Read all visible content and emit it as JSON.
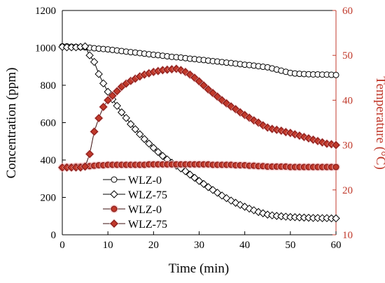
{
  "colors": {
    "axis_left": "#000000",
    "axis_right": "#c0392b",
    "black_marker_stroke": "#000000",
    "black_marker_fill": "#ffffff",
    "red_line": "#3a0d0d",
    "red_marker_fill": "#c0392b",
    "red_marker_stroke": "#7a1010",
    "red_marker_glow": "#f2b8b8"
  },
  "chart_data": {
    "type": "line",
    "xlabel": "Time (min)",
    "ylabel_left": "Concentration (ppm)",
    "ylabel_right": "Temperature (°C)",
    "xlim": [
      0,
      60
    ],
    "ylim_left": [
      0,
      1200
    ],
    "ylim_right": [
      10,
      60
    ],
    "xticks": [
      "0",
      "10",
      "20",
      "30",
      "40",
      "50",
      "60"
    ],
    "yticks_left": [
      "0",
      "200",
      "400",
      "600",
      "800",
      "1000",
      "1200"
    ],
    "yticks_right": [
      "10",
      "20",
      "30",
      "40",
      "50",
      "60"
    ],
    "grid": false,
    "legend_position": "center-left",
    "series": [
      {
        "name": "WLZ-0",
        "axis": "left",
        "marker": "circle-open",
        "x": [
          0,
          1,
          2,
          3,
          4,
          5,
          6,
          7,
          8,
          9,
          10,
          11,
          12,
          13,
          14,
          15,
          16,
          17,
          18,
          19,
          20,
          21,
          22,
          23,
          24,
          25,
          26,
          27,
          28,
          29,
          30,
          31,
          32,
          33,
          34,
          35,
          36,
          37,
          38,
          39,
          40,
          41,
          42,
          43,
          44,
          45,
          46,
          47,
          48,
          49,
          50,
          51,
          52,
          53,
          54,
          55,
          56,
          57,
          58,
          59,
          60
        ],
        "y": [
          1008,
          1008,
          1006,
          1005,
          1004,
          1003,
          1001,
          998,
          996,
          994,
          992,
          989,
          986,
          983,
          980,
          977,
          975,
          972,
          969,
          966,
          963,
          961,
          958,
          955,
          952,
          950,
          948,
          945,
          942,
          940,
          937,
          935,
          932,
          929,
          927,
          924,
          921,
          919,
          916,
          913,
          910,
          908,
          905,
          902,
          899,
          896,
          890,
          884,
          878,
          872,
          866,
          863,
          861,
          860,
          859,
          858,
          858,
          857,
          857,
          856,
          855
        ]
      },
      {
        "name": "WLZ-75",
        "axis": "left",
        "marker": "diamond-open",
        "x": [
          0,
          1,
          2,
          3,
          4,
          5,
          6,
          7,
          8,
          9,
          10,
          11,
          12,
          13,
          14,
          15,
          16,
          17,
          18,
          19,
          20,
          21,
          22,
          23,
          24,
          25,
          26,
          27,
          28,
          29,
          30,
          31,
          32,
          33,
          34,
          35,
          36,
          37,
          38,
          39,
          40,
          41,
          42,
          43,
          44,
          45,
          46,
          47,
          48,
          49,
          50,
          51,
          52,
          53,
          54,
          55,
          56,
          57,
          58,
          59,
          60
        ],
        "y": [
          1005,
          1003,
          1003,
          1003,
          1005,
          1008,
          960,
          925,
          860,
          810,
          765,
          725,
          690,
          655,
          625,
          592,
          565,
          538,
          512,
          488,
          465,
          443,
          422,
          403,
          385,
          370,
          355,
          340,
          322,
          305,
          288,
          272,
          255,
          240,
          225,
          210,
          196,
          183,
          171,
          160,
          150,
          140,
          131,
          122,
          115,
          108,
          104,
          101,
          99,
          97,
          95,
          94,
          93,
          92,
          91,
          90,
          90,
          89,
          89,
          88,
          88
        ]
      },
      {
        "name": "WLZ-0",
        "axis": "right",
        "marker": "circle-filled",
        "x": [
          0,
          1,
          2,
          3,
          4,
          5,
          6,
          7,
          8,
          9,
          10,
          11,
          12,
          13,
          14,
          15,
          16,
          17,
          18,
          19,
          20,
          21,
          22,
          23,
          24,
          25,
          26,
          27,
          28,
          29,
          30,
          31,
          32,
          33,
          34,
          35,
          36,
          37,
          38,
          39,
          40,
          41,
          42,
          43,
          44,
          45,
          46,
          47,
          48,
          49,
          50,
          51,
          52,
          53,
          54,
          55,
          56,
          57,
          58,
          59,
          60
        ],
        "y": [
          25.0,
          25.1,
          25.1,
          25.2,
          25.2,
          25.3,
          25.3,
          25.4,
          25.5,
          25.5,
          25.6,
          25.6,
          25.6,
          25.6,
          25.6,
          25.6,
          25.6,
          25.6,
          25.6,
          25.7,
          25.7,
          25.7,
          25.7,
          25.7,
          25.7,
          25.7,
          25.7,
          25.7,
          25.7,
          25.7,
          25.7,
          25.7,
          25.7,
          25.6,
          25.6,
          25.6,
          25.6,
          25.6,
          25.5,
          25.5,
          25.5,
          25.4,
          25.4,
          25.3,
          25.3,
          25.2,
          25.2,
          25.2,
          25.2,
          25.2,
          25.1,
          25.1,
          25.1,
          25.1,
          25.1,
          25.1,
          25.1,
          25.1,
          25.1,
          25.1,
          25.1
        ]
      },
      {
        "name": "WLZ-75",
        "axis": "right",
        "marker": "diamond-filled",
        "x": [
          0,
          1,
          2,
          3,
          4,
          5,
          6,
          7,
          8,
          9,
          10,
          11,
          12,
          13,
          14,
          15,
          16,
          17,
          18,
          19,
          20,
          21,
          22,
          23,
          24,
          25,
          26,
          27,
          28,
          29,
          30,
          31,
          32,
          33,
          34,
          35,
          36,
          37,
          38,
          39,
          40,
          41,
          42,
          43,
          44,
          45,
          46,
          47,
          48,
          49,
          50,
          51,
          52,
          53,
          54,
          55,
          56,
          57,
          58,
          59,
          60
        ],
        "y": [
          25.0,
          25.0,
          25.0,
          25.0,
          25.0,
          25.2,
          28.0,
          33.0,
          36.0,
          38.5,
          40.0,
          41.0,
          42.0,
          43.0,
          43.7,
          44.3,
          44.8,
          45.3,
          45.7,
          46.0,
          46.3,
          46.5,
          46.7,
          46.8,
          46.9,
          47.0,
          46.7,
          46.3,
          45.7,
          45.0,
          44.2,
          43.3,
          42.4,
          41.6,
          40.8,
          40.0,
          39.3,
          38.6,
          38.0,
          37.3,
          36.7,
          36.1,
          35.5,
          35.0,
          34.4,
          33.9,
          33.6,
          33.4,
          33.2,
          32.9,
          32.7,
          32.4,
          32.1,
          31.8,
          31.5,
          31.2,
          30.9,
          30.6,
          30.3,
          30.2,
          30.0
        ]
      }
    ]
  }
}
